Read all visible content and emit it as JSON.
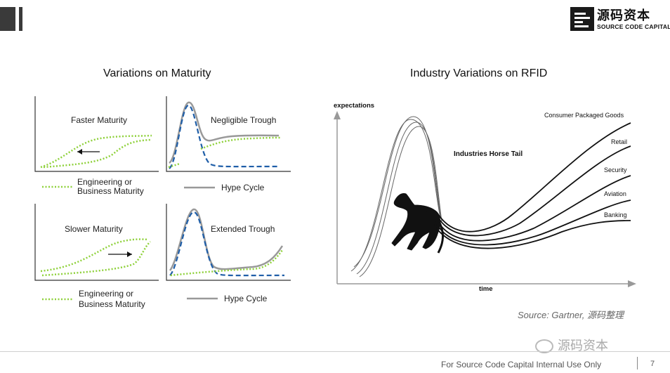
{
  "branding": {
    "name_cn": "源码资本",
    "name_en": "SOURCE CODE CAPITAL"
  },
  "left_section": {
    "title": "Variations on Maturity",
    "panels": [
      {
        "label": "Faster Maturity",
        "legend": "Engineering or\nBusiness Maturity"
      },
      {
        "label": "Negligible Trough",
        "legend": "Hype Cycle"
      },
      {
        "label": "Slower Maturity",
        "legend": "Engineering or\nBusiness Maturity"
      },
      {
        "label": "Extended Trough",
        "legend": "Hype Cycle"
      }
    ]
  },
  "right_section": {
    "title": "Industry Variations on RFID",
    "y_axis_label": "expectations",
    "x_axis_label": "time",
    "annotation": "Industries Horse Tail",
    "industries": [
      "Consumer Packaged Goods",
      "Retail",
      "Security",
      "Aviation",
      "Banking"
    ]
  },
  "source": "Source: Gartner, 源码整理",
  "watermark": "源码资本",
  "footer": {
    "text": "For Source Code Capital Internal Use Only",
    "page_number": "7"
  },
  "colors": {
    "green_dotted": "#8fd13b",
    "blue_dashed": "#1f5ea8",
    "hype_gray": "#999999",
    "bar": "#3a3a3a"
  }
}
